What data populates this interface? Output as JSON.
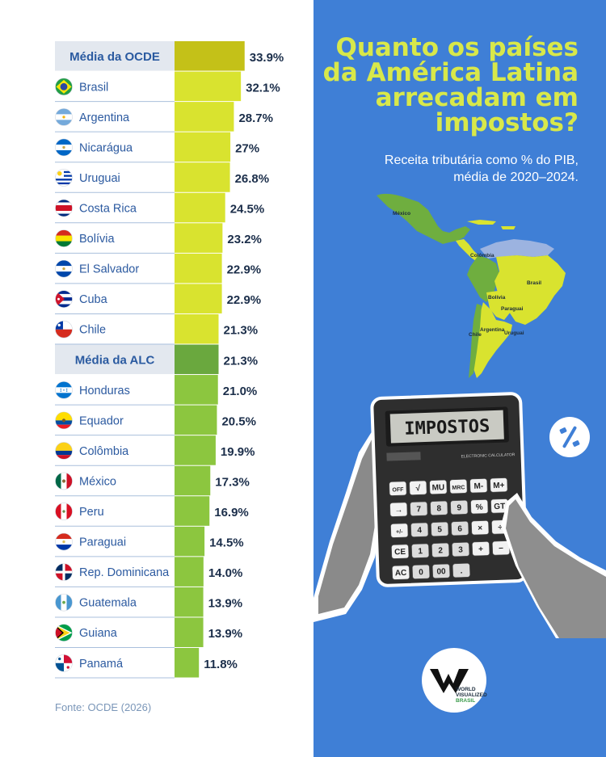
{
  "chart_data": {
    "type": "bar",
    "orientation": "horizontal",
    "title": "Quanto os países da América Latina arrecadam em impostos?",
    "subtitle": "Receita tributária como % do PIB, média de 2020–2024.",
    "source": "Fonte: OCDE (2026)",
    "xlim": [
      0,
      34
    ],
    "rows": [
      {
        "label": "Média da OCDE",
        "value": 33.9,
        "display": "33.9%",
        "kind": "avg",
        "flag": "oecd"
      },
      {
        "label": "Brasil",
        "value": 32.1,
        "display": "32.1%",
        "kind": "country",
        "flag": "br"
      },
      {
        "label": "Argentina",
        "value": 28.7,
        "display": "28.7%",
        "kind": "country",
        "flag": "ar"
      },
      {
        "label": "Nicarágua",
        "value": 27,
        "display": "27%",
        "kind": "country",
        "flag": "ni"
      },
      {
        "label": "Uruguai",
        "value": 26.8,
        "display": "26.8%",
        "kind": "country",
        "flag": "uy"
      },
      {
        "label": "Costa Rica",
        "value": 24.5,
        "display": "24.5%",
        "kind": "country",
        "flag": "cr"
      },
      {
        "label": "Bolívia",
        "value": 23.2,
        "display": "23.2%",
        "kind": "country",
        "flag": "bo"
      },
      {
        "label": "El Salvador",
        "value": 22.9,
        "display": "22.9%",
        "kind": "country",
        "flag": "sv"
      },
      {
        "label": "Cuba",
        "value": 22.9,
        "display": "22.9%",
        "kind": "country",
        "flag": "cu"
      },
      {
        "label": "Chile",
        "value": 21.3,
        "display": "21.3%",
        "kind": "country",
        "flag": "cl"
      },
      {
        "label": "Média da ALC",
        "value": 21.3,
        "display": "21.3%",
        "kind": "avg",
        "flag": "alc"
      },
      {
        "label": "Honduras",
        "value": 21.0,
        "display": "21.0%",
        "kind": "country",
        "flag": "hn"
      },
      {
        "label": "Equador",
        "value": 20.5,
        "display": "20.5%",
        "kind": "country",
        "flag": "ec"
      },
      {
        "label": "Colômbia",
        "value": 19.9,
        "display": "19.9%",
        "kind": "country",
        "flag": "co"
      },
      {
        "label": "México",
        "value": 17.3,
        "display": "17.3%",
        "kind": "country",
        "flag": "mx"
      },
      {
        "label": "Peru",
        "value": 16.9,
        "display": "16.9%",
        "kind": "country",
        "flag": "pe"
      },
      {
        "label": "Paraguai",
        "value": 14.5,
        "display": "14.5%",
        "kind": "country",
        "flag": "py"
      },
      {
        "label": "Rep. Dominicana",
        "value": 14.0,
        "display": "14.0%",
        "kind": "country",
        "flag": "do"
      },
      {
        "label": "Guatemala",
        "value": 13.9,
        "display": "13.9%",
        "kind": "country",
        "flag": "gt"
      },
      {
        "label": "Guiana",
        "value": 13.9,
        "display": "13.9%",
        "kind": "country",
        "flag": "gy"
      },
      {
        "label": "Panamá",
        "value": 11.8,
        "display": "11.8%",
        "kind": "country",
        "flag": "pa"
      }
    ]
  },
  "colors": {
    "oecd_bar": "#c4c118",
    "upper_bar": "#d9e32f",
    "alc_bar": "#6aa83e",
    "lower_bar": "#8cc63f",
    "avg_label_bg": "#e3e8ef",
    "row_line": "#a9bfdc",
    "label_text": "#2c5aa0",
    "avg_text": "#2a5aa0",
    "value_text": "#1b2e4a",
    "right_bg": "#3f7fd6",
    "title": "#d8e84a"
  },
  "map": {
    "labels": [
      "México",
      "Colômbia",
      "Brasil",
      "Bolívia",
      "Paraguai",
      "Chile",
      "Argentina",
      "Uruguai"
    ]
  },
  "calculator": {
    "display": "IMPOSTOS",
    "brand": "ELECTRONIC CALCULATOR",
    "keys": [
      "OFF",
      "√",
      "MU",
      "MRC",
      "M-",
      "M+",
      "→",
      "7",
      "8",
      "9",
      "%",
      "GT",
      "+/-",
      "4",
      "5",
      "6",
      "×",
      "÷",
      "CE",
      "1",
      "2",
      "3",
      "+",
      "−",
      "AC",
      "0",
      "00",
      "."
    ]
  },
  "badge": {
    "symbol": "%"
  },
  "logo": {
    "line1": "WORLD",
    "line2": "VISUALIZED",
    "line3": "BRASIL",
    "mark": "W"
  }
}
